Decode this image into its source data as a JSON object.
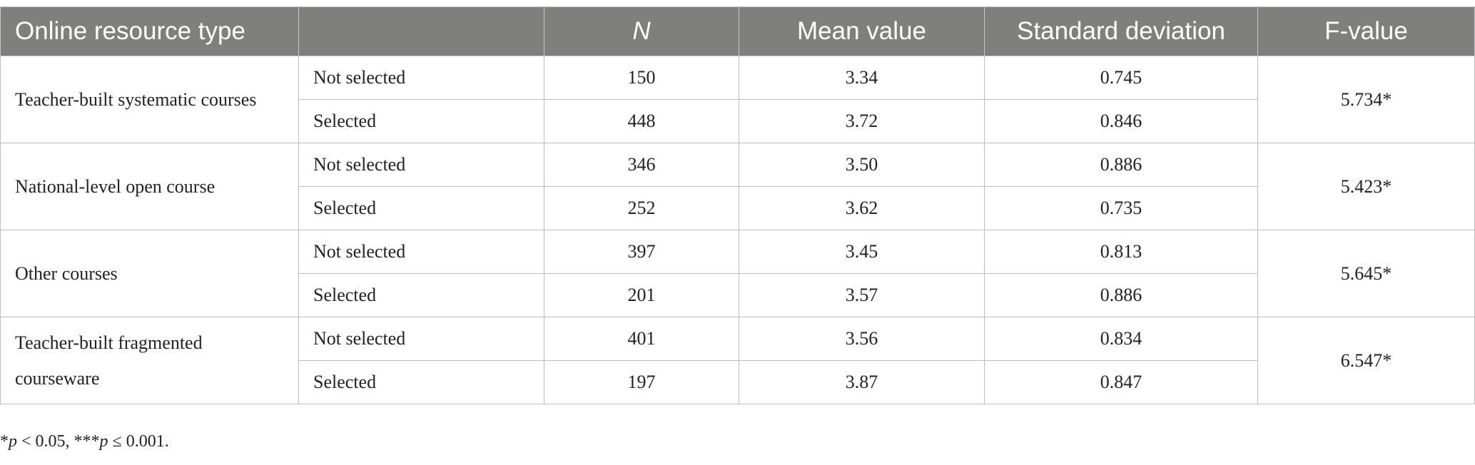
{
  "header": {
    "columns": [
      "Online resource type",
      "N",
      "Mean value",
      "Standard deviation",
      "F-value"
    ]
  },
  "groups": [
    {
      "label": "Teacher-built systematic courses",
      "f_value": "5.734*",
      "rows": [
        {
          "selection": "Not selected",
          "n": "150",
          "mean": "3.34",
          "sd": "0.745"
        },
        {
          "selection": "Selected",
          "n": "448",
          "mean": "3.72",
          "sd": "0.846"
        }
      ]
    },
    {
      "label": "National-level open course",
      "f_value": "5.423*",
      "rows": [
        {
          "selection": "Not selected",
          "n": "346",
          "mean": "3.50",
          "sd": "0.886"
        },
        {
          "selection": "Selected",
          "n": "252",
          "mean": "3.62",
          "sd": "0.735"
        }
      ]
    },
    {
      "label": "Other courses",
      "f_value": "5.645*",
      "rows": [
        {
          "selection": "Not selected",
          "n": "397",
          "mean": "3.45",
          "sd": "0.813"
        },
        {
          "selection": "Selected",
          "n": "201",
          "mean": "3.57",
          "sd": "0.886"
        }
      ]
    },
    {
      "label": "Teacher-built fragmented courseware",
      "f_value": "6.547*",
      "rows": [
        {
          "selection": "Not selected",
          "n": "401",
          "mean": "3.56",
          "sd": "0.834"
        },
        {
          "selection": "Selected",
          "n": "197",
          "mean": "3.87",
          "sd": "0.847"
        }
      ]
    }
  ],
  "footnote": [
    "*",
    "p",
    " < 0.05, ***",
    "p",
    " ≤ 0.001."
  ]
}
